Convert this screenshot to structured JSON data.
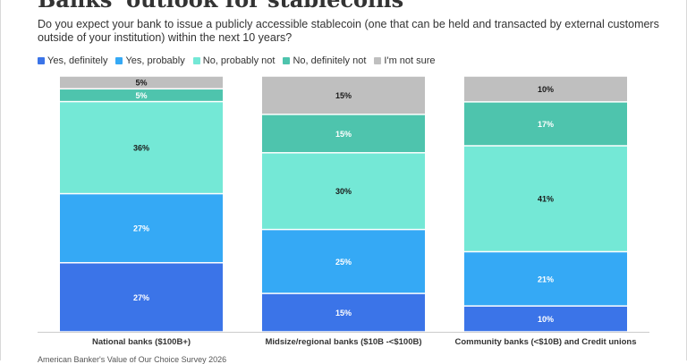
{
  "title": "Banks' outlook for stablecoins",
  "subtitle": "Do you expect your bank to issue a publicly accessible stablecoin (one that can be held and transacted by external customers outside of your institution) within the next 10 years?",
  "source": "American Banker's Value of Our Choice Survey 2026",
  "colors": {
    "yes_definitely": "#3b74e8",
    "yes_probably": "#35a9f5",
    "no_probably_not": "#74e8d6",
    "no_definitely_not": "#4ec4ad",
    "not_sure": "#bfbfbf"
  },
  "chart_data": {
    "type": "bar",
    "stacked": true,
    "normalized": true,
    "categories": [
      "National banks ($100B+)",
      "Midsize/regional banks ($10B -<$100B)",
      "Community banks (<$10B) and Credit unions"
    ],
    "series": [
      {
        "name": "Yes, definitely",
        "values": [
          27,
          15,
          10
        ],
        "labels": [
          "27%",
          "15%",
          "10%"
        ]
      },
      {
        "name": "Yes, probably",
        "values": [
          27,
          25,
          21
        ],
        "labels": [
          "27%",
          "25%",
          "21%"
        ]
      },
      {
        "name": "No, probably not",
        "values": [
          36,
          30,
          41
        ],
        "labels": [
          "36%",
          "30%",
          "41%"
        ]
      },
      {
        "name": "No, definitely not",
        "values": [
          5,
          15,
          17
        ],
        "labels": [
          "5%",
          "15%",
          "17%"
        ]
      },
      {
        "name": "I'm not sure",
        "values": [
          5,
          15,
          10
        ],
        "labels": [
          "5%",
          "15%",
          "10%"
        ]
      }
    ],
    "legend_position": "top-left",
    "grid": false
  }
}
